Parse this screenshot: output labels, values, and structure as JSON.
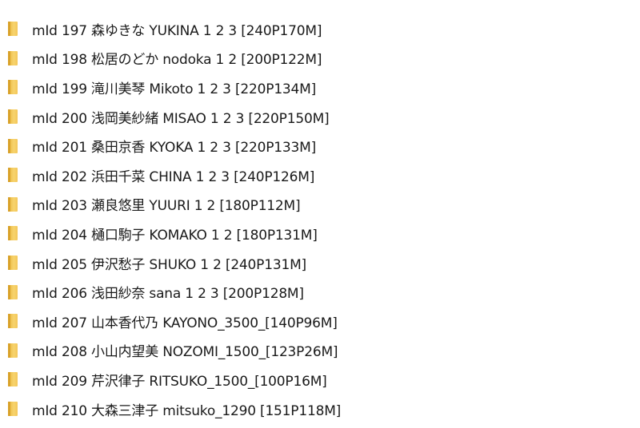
{
  "folders": [
    {
      "name": "mId 197 森ゆきな YUKINA 1 2 3 [240P170M]",
      "icon": "folder-icon"
    },
    {
      "name": "mId 198 松居のどか nodoka 1 2 [200P122M]",
      "icon": "folder-icon"
    },
    {
      "name": "mId 199 滝川美琴 Mikoto 1 2 3 [220P134M]",
      "icon": "folder-icon"
    },
    {
      "name": "mId 200 浅岡美紗緒 MISAO 1 2 3 [220P150M]",
      "icon": "folder-icon"
    },
    {
      "name": "mId 201 桑田京香 KYOKA 1 2 3 [220P133M]",
      "icon": "folder-icon"
    },
    {
      "name": "mId 202 浜田千菜 CHINA 1 2 3 [240P126M]",
      "icon": "folder-icon"
    },
    {
      "name": "mId 203 瀬良悠里 YUURI 1 2 [180P112M]",
      "icon": "folder-icon"
    },
    {
      "name": "mId 204 樋口駒子 KOMAKO 1 2 [180P131M]",
      "icon": "folder-icon"
    },
    {
      "name": "mId 205 伊沢愁子 SHUKO 1 2 [240P131M]",
      "icon": "folder-icon"
    },
    {
      "name": "mId 206 浅田紗奈 sana 1 2 3 [200P128M]",
      "icon": "folder-icon"
    },
    {
      "name": "mId 207 山本香代乃 KAYONO_3500_[140P96M]",
      "icon": "folder-icon"
    },
    {
      "name": "mId 208 小山内望美 NOZOMI_1500_[123P26M]",
      "icon": "folder-icon"
    },
    {
      "name": "mId 209 芹沢律子 RITSUKO_1500_[100P16M]",
      "icon": "folder-icon"
    },
    {
      "name": "mId 210 大森三津子 mitsuko_1290 [151P118M]",
      "icon": "folder-icon"
    }
  ]
}
